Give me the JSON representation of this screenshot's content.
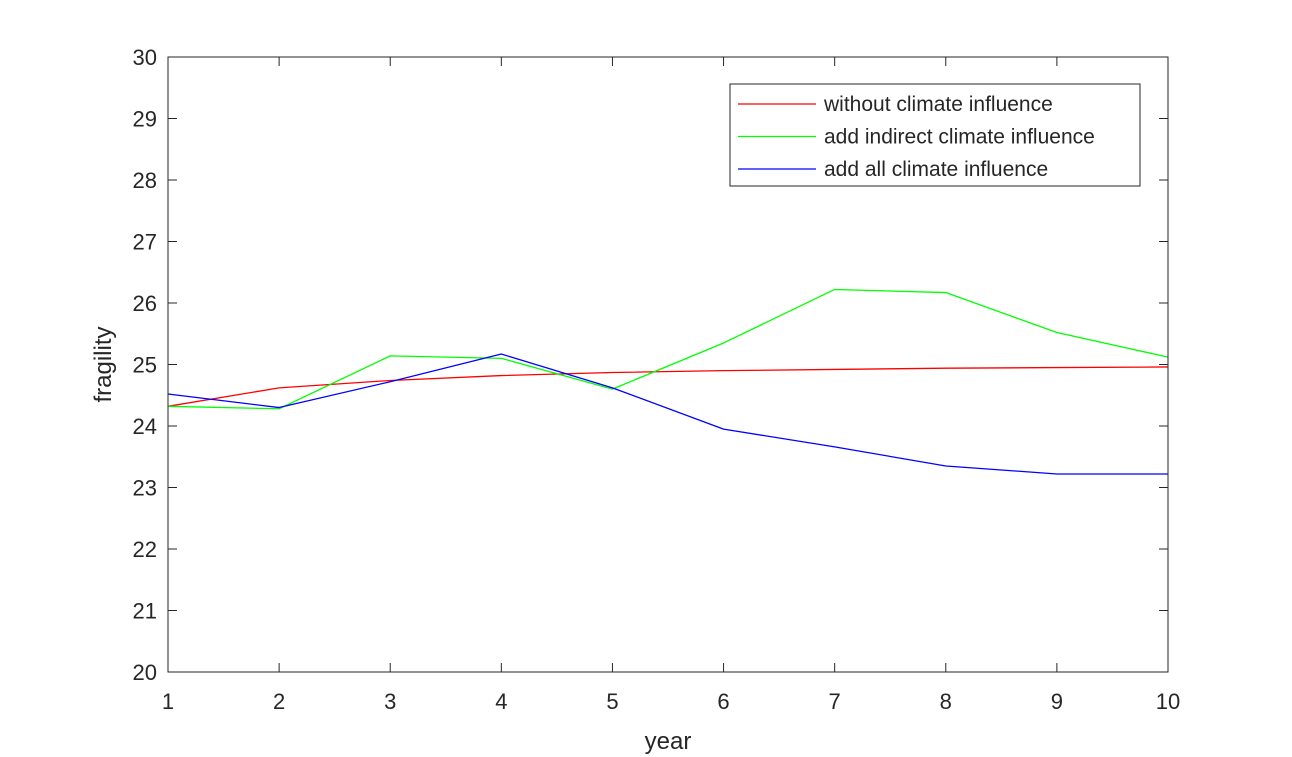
{
  "chart_data": {
    "type": "line",
    "title": "",
    "xlabel": "year",
    "ylabel": "fragility",
    "xlim": [
      1,
      10
    ],
    "ylim": [
      20,
      30
    ],
    "xticks": [
      1,
      2,
      3,
      4,
      5,
      6,
      7,
      8,
      9,
      10
    ],
    "yticks": [
      20,
      21,
      22,
      23,
      24,
      25,
      26,
      27,
      28,
      29,
      30
    ],
    "grid": false,
    "box": true,
    "legend": "top-right",
    "x": [
      1,
      2,
      3,
      4,
      5,
      6,
      7,
      8,
      9,
      10
    ],
    "series": [
      {
        "name": "without climate influence",
        "color": "#ff0000",
        "values": [
          24.32,
          24.62,
          24.74,
          24.82,
          24.87,
          24.9,
          24.92,
          24.94,
          24.95,
          24.96
        ]
      },
      {
        "name": "add indirect climate influence",
        "color": "#00ff00",
        "values": [
          24.32,
          24.28,
          25.14,
          25.1,
          24.6,
          25.35,
          26.22,
          26.17,
          25.52,
          25.12
        ]
      },
      {
        "name": "add all climate influence",
        "color": "#0000ff",
        "values": [
          24.52,
          24.3,
          24.72,
          25.17,
          24.62,
          23.95,
          23.66,
          23.35,
          23.22,
          23.22
        ]
      }
    ]
  }
}
